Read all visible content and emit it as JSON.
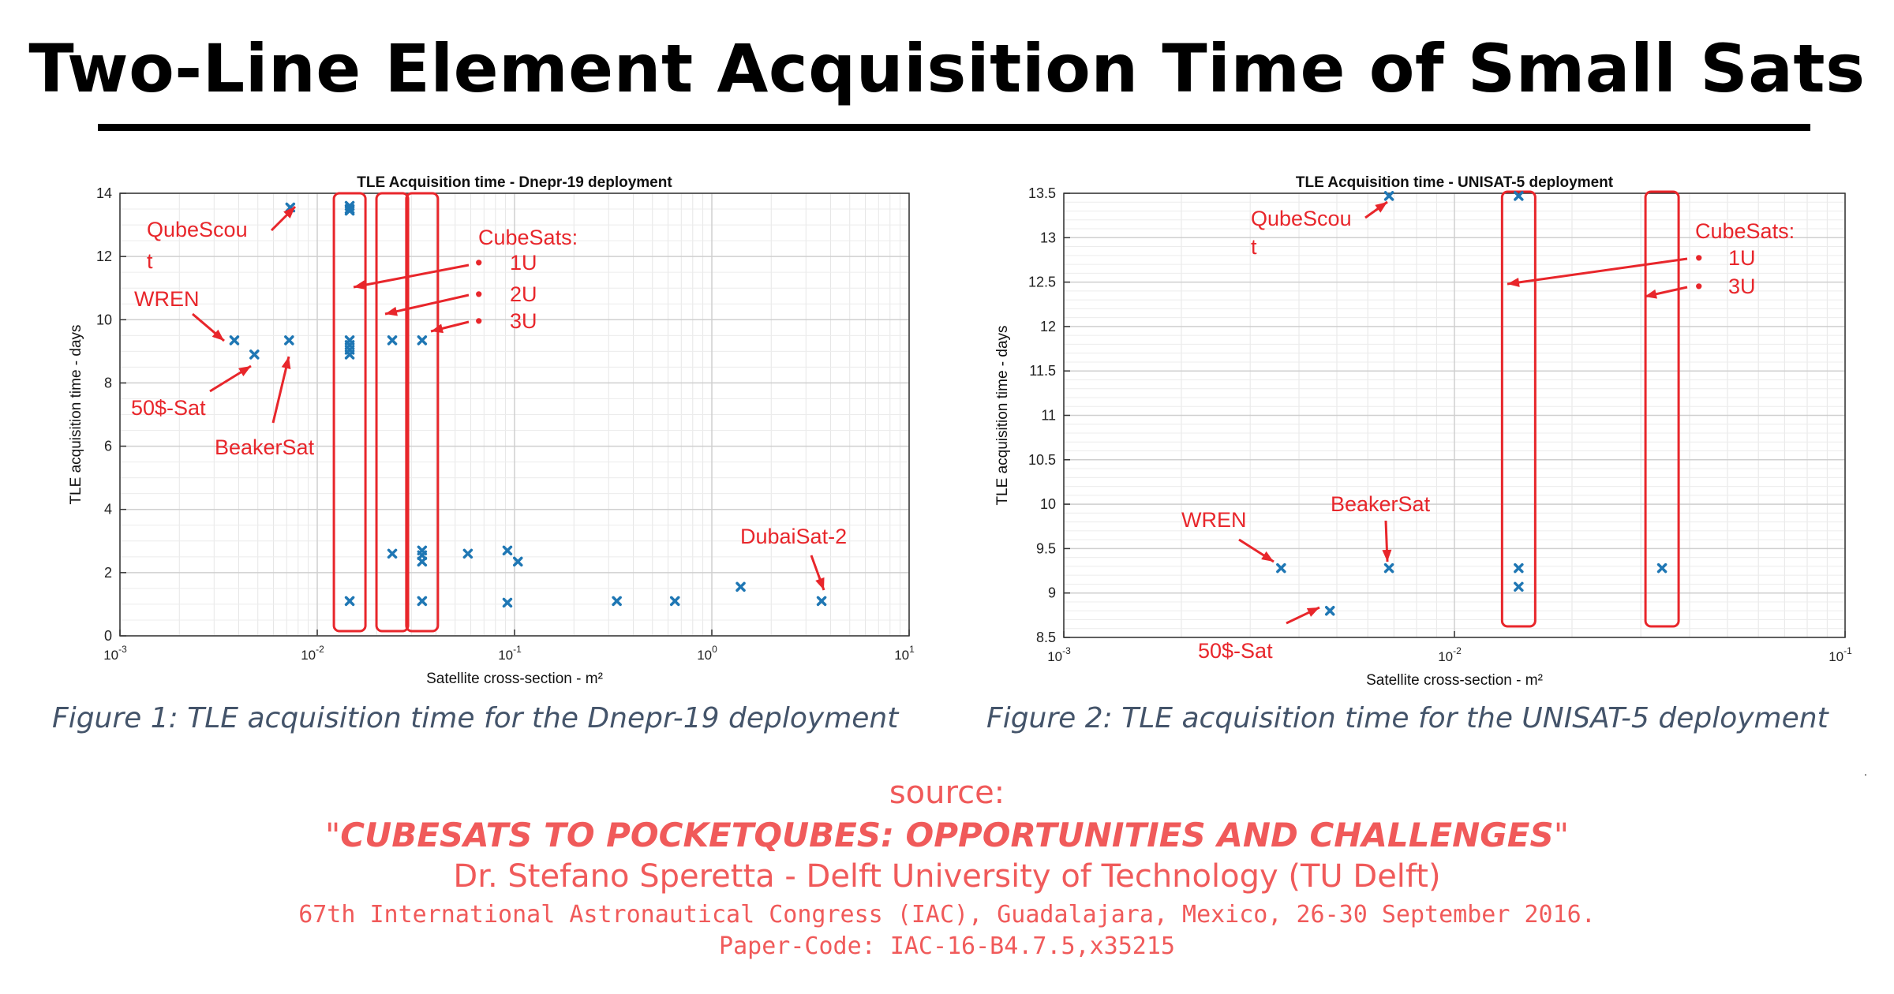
{
  "slide": {
    "title": "Two-Line Element Acquisition Time of Small Sats",
    "caption1": "Figure 1: TLE acquisition time for the Dnepr-19  deployment",
    "caption2": "Figure 2: TLE acquisition time for the UNISAT-5 deployment",
    "source_label": "source:",
    "source_open_quote": "\"",
    "source_title": "CUBESATS TO POCKETQUBES: OPPORTUNITIES AND CHALLENGES",
    "source_close_quote": "\"",
    "source_author": "Dr. Stefano Speretta - Delft University of Technology (TU Delft)",
    "source_venue": "67th International Astronautical Congress (IAC), Guadalajara, Mexico, 26-30 September 2016.",
    "source_paper_code": "Paper-Code: IAC-16-B4.7.5,x35215",
    "stray_mark": ".",
    "colors": {
      "marker": "#1f77b4",
      "annotation": "#e8262b",
      "source": "#f05a5a",
      "caption": "#44546a"
    }
  },
  "chart_data": [
    {
      "type": "scatter",
      "title": "TLE Acquisition time - Dnepr-19 deployment",
      "xlabel": "Satellite cross-section - m²",
      "ylabel": "TLE acquisition time - days",
      "xscale": "log",
      "xlim": [
        0.001,
        10
      ],
      "ylim": [
        0,
        14
      ],
      "xticks": [
        0.001,
        0.01,
        0.1,
        1,
        10
      ],
      "xtick_labels": [
        {
          "base": "10",
          "exp": "-3"
        },
        {
          "base": "10",
          "exp": "-2"
        },
        {
          "base": "10",
          "exp": "-1"
        },
        {
          "base": "10",
          "exp": "0"
        },
        {
          "base": "10",
          "exp": "1"
        }
      ],
      "yticks": [
        0,
        2,
        4,
        6,
        8,
        10,
        12,
        14
      ],
      "ytick_labels": [
        "0",
        "2",
        "4",
        "6",
        "8",
        "10",
        "12",
        "14"
      ],
      "grid": true,
      "points": [
        [
          0.0038,
          9.35
        ],
        [
          0.0048,
          8.9
        ],
        [
          0.0072,
          9.35
        ],
        [
          0.0073,
          13.55
        ],
        [
          0.0146,
          13.6
        ],
        [
          0.0146,
          13.5
        ],
        [
          0.0146,
          13.45
        ],
        [
          0.0146,
          9.35
        ],
        [
          0.0146,
          9.2
        ],
        [
          0.0146,
          9.05
        ],
        [
          0.0146,
          8.9
        ],
        [
          0.0146,
          1.1
        ],
        [
          0.024,
          9.35
        ],
        [
          0.024,
          2.6
        ],
        [
          0.034,
          9.35
        ],
        [
          0.034,
          2.7
        ],
        [
          0.034,
          2.55
        ],
        [
          0.034,
          2.35
        ],
        [
          0.034,
          1.1
        ],
        [
          0.058,
          2.6
        ],
        [
          0.092,
          2.7
        ],
        [
          0.092,
          1.05
        ],
        [
          0.104,
          2.35
        ],
        [
          0.33,
          1.1
        ],
        [
          0.65,
          1.1
        ],
        [
          1.4,
          1.55
        ],
        [
          3.6,
          1.1
        ]
      ],
      "annotations": [
        {
          "lines": [
            "QubeScou",
            "t"
          ]
        },
        {
          "lines": [
            "WREN"
          ]
        },
        {
          "lines": [
            "50$-Sat"
          ]
        },
        {
          "lines": [
            "BeakerSat"
          ]
        },
        {
          "lines": [
            "DubaiSat-2"
          ]
        },
        {
          "lines": [
            "CubeSats:"
          ]
        },
        {
          "lines": [
            "•",
            "1U"
          ]
        },
        {
          "lines": [
            "•",
            "2U"
          ]
        },
        {
          "lines": [
            "•",
            "3U"
          ]
        }
      ]
    },
    {
      "type": "scatter",
      "title": "TLE Acquisition time - UNISAT-5 deployment",
      "xlabel": "Satellite cross-section - m²",
      "ylabel": "TLE acquisition time - days",
      "xscale": "log",
      "xlim": [
        0.001,
        0.1
      ],
      "ylim": [
        8.5,
        13.5
      ],
      "xticks": [
        0.001,
        0.01,
        0.1
      ],
      "xtick_labels": [
        {
          "base": "10",
          "exp": "-3"
        },
        {
          "base": "10",
          "exp": "-2"
        },
        {
          "base": "10",
          "exp": "-1"
        }
      ],
      "yticks": [
        8.5,
        9,
        9.5,
        10,
        10.5,
        11,
        11.5,
        12,
        12.5,
        13,
        13.5
      ],
      "ytick_labels": [
        "8.5",
        "9",
        "9.5",
        "10",
        "10.5",
        "11",
        "11.5",
        "12",
        "12.5",
        "13",
        "13.5"
      ],
      "grid": true,
      "points": [
        [
          0.0036,
          9.28
        ],
        [
          0.0048,
          8.8
        ],
        [
          0.0068,
          13.47
        ],
        [
          0.0068,
          9.28
        ],
        [
          0.0146,
          13.47
        ],
        [
          0.0146,
          9.28
        ],
        [
          0.0146,
          9.07
        ],
        [
          0.034,
          9.28
        ]
      ],
      "annotations": [
        {
          "lines": [
            "QubeScou",
            "t"
          ]
        },
        {
          "lines": [
            "WREN"
          ]
        },
        {
          "lines": [
            "BeakerSat"
          ]
        },
        {
          "lines": [
            "50$-Sat"
          ]
        },
        {
          "lines": [
            "CubeSats:"
          ]
        },
        {
          "lines": [
            "•",
            "1U"
          ]
        },
        {
          "lines": [
            "•",
            "3U"
          ]
        }
      ]
    }
  ]
}
